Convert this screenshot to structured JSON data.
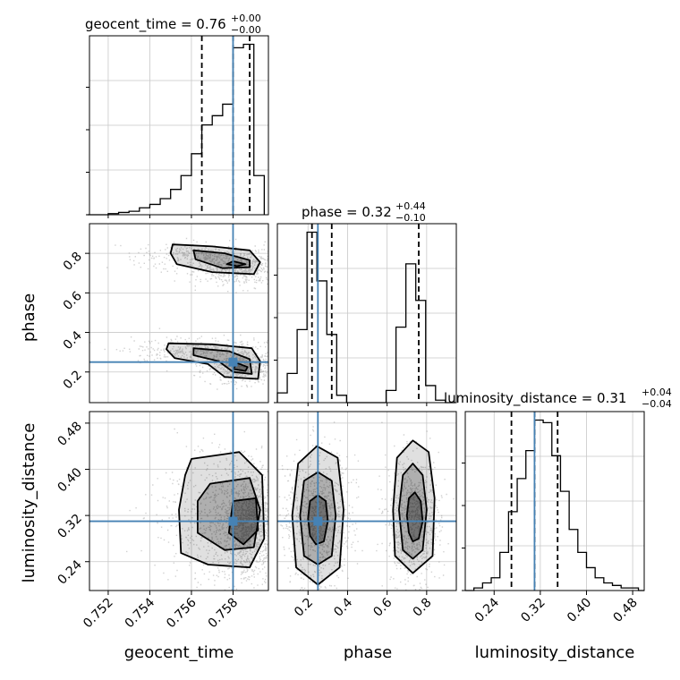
{
  "chart_data": {
    "type": "corner",
    "parameters": [
      "geocent_time",
      "phase",
      "luminosity_distance"
    ],
    "truths": {
      "geocent_time": 0.758,
      "phase": 0.25,
      "luminosity_distance": 0.31
    },
    "titles": {
      "geocent_time": {
        "prefix": "geocent_time = 0.76",
        "plus": "+0.00",
        "minus": "−0.00"
      },
      "phase": {
        "prefix": "phase = 0.32",
        "plus": "+0.44",
        "minus": "−0.10"
      },
      "luminosity_distance": {
        "prefix": "luminosity_distance = 0.31",
        "plus": "+0.04",
        "minus": "−0.04"
      }
    },
    "axis_labels": {
      "geocent_time": "geocent_time",
      "phase": "phase",
      "luminosity_distance": "luminosity_distance"
    },
    "ticks": {
      "geocent_time": [
        "0.752",
        "0.754",
        "0.756",
        "0.758"
      ],
      "phase": [
        "0.2",
        "0.4",
        "0.6",
        "0.8"
      ],
      "luminosity_distance": [
        "0.24",
        "0.32",
        "0.40",
        "0.48"
      ]
    },
    "ranges": {
      "geocent_time": [
        0.7511,
        0.7597
      ],
      "phase": [
        0.045,
        0.95
      ],
      "luminosity_distance": [
        0.19,
        0.5
      ]
    },
    "quantiles": {
      "geocent_time": [
        0.7565,
        0.758,
        0.7588
      ],
      "phase": [
        0.22,
        0.32,
        0.76
      ],
      "luminosity_distance": [
        0.27,
        0.31,
        0.35
      ]
    },
    "histograms": {
      "geocent_time": {
        "edges": [
          0.751,
          0.7515,
          0.752,
          0.7525,
          0.753,
          0.7535,
          0.754,
          0.7545,
          0.755,
          0.7555,
          0.756,
          0.7565,
          0.757,
          0.7575,
          0.758,
          0.7585,
          0.759,
          0.7595
        ],
        "counts": [
          0,
          0,
          1,
          2,
          3,
          6,
          9,
          14,
          22,
          34,
          53,
          78,
          86,
          96,
          145,
          148,
          34
        ]
      },
      "phase": {
        "edges": [
          0.045,
          0.095,
          0.145,
          0.195,
          0.245,
          0.295,
          0.345,
          0.395,
          0.445,
          0.495,
          0.545,
          0.595,
          0.645,
          0.695,
          0.745,
          0.795,
          0.845,
          0.895,
          0.945
        ],
        "counts": [
          8,
          24,
          60,
          140,
          100,
          56,
          6,
          0,
          0,
          0,
          0,
          10,
          62,
          114,
          84,
          14,
          2,
          0
        ]
      },
      "luminosity_distance": {
        "edges": [
          0.19,
          0.205,
          0.22,
          0.235,
          0.25,
          0.265,
          0.28,
          0.295,
          0.31,
          0.325,
          0.34,
          0.355,
          0.37,
          0.385,
          0.4,
          0.415,
          0.43,
          0.445,
          0.46,
          0.475,
          0.49,
          0.5
        ],
        "counts": [
          0,
          1,
          3,
          5,
          15,
          31,
          44,
          55,
          67,
          66,
          53,
          39,
          24,
          15,
          9,
          5,
          3,
          2,
          1,
          1,
          0
        ]
      }
    },
    "density_blobs": {
      "geocent_time|phase": [
        {
          "x": 0.7565,
          "y": 0.79,
          "sx": 0.0012,
          "sy": 0.025,
          "w": 0.8
        },
        {
          "x": 0.7583,
          "y": 0.72,
          "sx": 0.0007,
          "sy": 0.03,
          "w": 1.0
        },
        {
          "x": 0.7565,
          "y": 0.31,
          "sx": 0.0012,
          "sy": 0.025,
          "w": 0.8
        },
        {
          "x": 0.7585,
          "y": 0.23,
          "sx": 0.0007,
          "sy": 0.03,
          "w": 1.2
        }
      ],
      "geocent_time|luminosity_distance": [
        {
          "x": 0.7575,
          "y": 0.31,
          "sx": 0.0011,
          "sy": 0.04,
          "w": 0.8
        },
        {
          "x": 0.7588,
          "y": 0.31,
          "sx": 0.0005,
          "sy": 0.035,
          "w": 1.2
        }
      ],
      "phase|luminosity_distance": [
        {
          "x": 0.25,
          "y": 0.31,
          "sx": 0.06,
          "sy": 0.045,
          "w": 1.0
        },
        {
          "x": 0.73,
          "y": 0.31,
          "sx": 0.05,
          "sy": 0.04,
          "w": 0.9
        }
      ]
    },
    "contours": {
      "geocent_time|phase": [
        {
          "level": 3,
          "points": [
            [
              0.7551,
              0.845
            ],
            [
              0.757,
              0.835
            ],
            [
              0.7588,
              0.815
            ],
            [
              0.7593,
              0.755
            ],
            [
              0.759,
              0.695
            ],
            [
              0.757,
              0.705
            ],
            [
              0.7553,
              0.745
            ],
            [
              0.755,
              0.8
            ]
          ]
        },
        {
          "level": 2,
          "points": [
            [
              0.7561,
              0.815
            ],
            [
              0.7576,
              0.8
            ],
            [
              0.7588,
              0.765
            ],
            [
              0.7588,
              0.73
            ],
            [
              0.7575,
              0.725
            ],
            [
              0.7562,
              0.77
            ]
          ]
        },
        {
          "level": 1,
          "points": [
            [
              0.758,
              0.76
            ],
            [
              0.7586,
              0.745
            ],
            [
              0.7582,
              0.735
            ],
            [
              0.7577,
              0.745
            ]
          ]
        },
        {
          "level": 3,
          "points": [
            [
              0.7549,
              0.345
            ],
            [
              0.757,
              0.34
            ],
            [
              0.7589,
              0.32
            ],
            [
              0.7593,
              0.255
            ],
            [
              0.7592,
              0.165
            ],
            [
              0.7576,
              0.175
            ],
            [
              0.7568,
              0.24
            ],
            [
              0.7552,
              0.27
            ],
            [
              0.7548,
              0.315
            ]
          ]
        },
        {
          "level": 2,
          "points": [
            [
              0.7561,
              0.32
            ],
            [
              0.7578,
              0.305
            ],
            [
              0.7588,
              0.265
            ],
            [
              0.7589,
              0.19
            ],
            [
              0.758,
              0.2
            ],
            [
              0.7573,
              0.255
            ],
            [
              0.7561,
              0.285
            ]
          ]
        },
        {
          "level": 1,
          "points": [
            [
              0.7582,
              0.245
            ],
            [
              0.7587,
              0.225
            ],
            [
              0.7586,
              0.205
            ],
            [
              0.758,
              0.215
            ]
          ]
        }
      ],
      "geocent_time|luminosity_distance": [
        {
          "level": 3,
          "points": [
            [
              0.756,
              0.418
            ],
            [
              0.7583,
              0.43
            ],
            [
              0.7594,
              0.39
            ],
            [
              0.7595,
              0.28
            ],
            [
              0.7588,
              0.23
            ],
            [
              0.7568,
              0.235
            ],
            [
              0.7555,
              0.255
            ],
            [
              0.7554,
              0.33
            ],
            [
              0.7557,
              0.39
            ]
          ]
        },
        {
          "level": 2,
          "points": [
            [
              0.7569,
              0.375
            ],
            [
              0.7588,
              0.385
            ],
            [
              0.7593,
              0.33
            ],
            [
              0.759,
              0.265
            ],
            [
              0.7576,
              0.26
            ],
            [
              0.7563,
              0.29
            ],
            [
              0.7563,
              0.345
            ]
          ]
        },
        {
          "level": 1,
          "points": [
            [
              0.758,
              0.345
            ],
            [
              0.7591,
              0.35
            ],
            [
              0.7592,
              0.295
            ],
            [
              0.7585,
              0.27
            ],
            [
              0.7578,
              0.29
            ]
          ]
        }
      ],
      "phase|luminosity_distance": [
        {
          "level": 3,
          "points": [
            [
              0.245,
              0.44
            ],
            [
              0.35,
              0.42
            ],
            [
              0.38,
              0.33
            ],
            [
              0.36,
              0.23
            ],
            [
              0.25,
              0.2
            ],
            [
              0.14,
              0.23
            ],
            [
              0.12,
              0.32
            ],
            [
              0.15,
              0.41
            ]
          ]
        },
        {
          "level": 2,
          "points": [
            [
              0.25,
              0.395
            ],
            [
              0.32,
              0.38
            ],
            [
              0.34,
              0.32
            ],
            [
              0.32,
              0.25
            ],
            [
              0.25,
              0.235
            ],
            [
              0.18,
              0.25
            ],
            [
              0.16,
              0.32
            ],
            [
              0.18,
              0.38
            ]
          ]
        },
        {
          "level": 1,
          "points": [
            [
              0.25,
              0.355
            ],
            [
              0.29,
              0.345
            ],
            [
              0.3,
              0.31
            ],
            [
              0.28,
              0.275
            ],
            [
              0.24,
              0.27
            ],
            [
              0.21,
              0.285
            ],
            [
              0.2,
              0.315
            ],
            [
              0.21,
              0.345
            ]
          ]
        },
        {
          "level": 3,
          "points": [
            [
              0.73,
              0.45
            ],
            [
              0.81,
              0.43
            ],
            [
              0.84,
              0.35
            ],
            [
              0.83,
              0.25
            ],
            [
              0.73,
              0.22
            ],
            [
              0.64,
              0.25
            ],
            [
              0.63,
              0.33
            ],
            [
              0.65,
              0.42
            ]
          ]
        },
        {
          "level": 2,
          "points": [
            [
              0.73,
              0.41
            ],
            [
              0.78,
              0.39
            ],
            [
              0.8,
              0.33
            ],
            [
              0.78,
              0.26
            ],
            [
              0.73,
              0.245
            ],
            [
              0.68,
              0.26
            ],
            [
              0.66,
              0.33
            ],
            [
              0.68,
              0.39
            ]
          ]
        },
        {
          "level": 1,
          "points": [
            [
              0.74,
              0.36
            ],
            [
              0.77,
              0.345
            ],
            [
              0.78,
              0.31
            ],
            [
              0.76,
              0.28
            ],
            [
              0.73,
              0.275
            ],
            [
              0.71,
              0.29
            ],
            [
              0.7,
              0.32
            ],
            [
              0.71,
              0.35
            ]
          ]
        }
      ]
    },
    "colors": {
      "truth": "#4682b4",
      "hist": "#000000",
      "grid": "#c8c8c8",
      "density": "#000000"
    }
  }
}
